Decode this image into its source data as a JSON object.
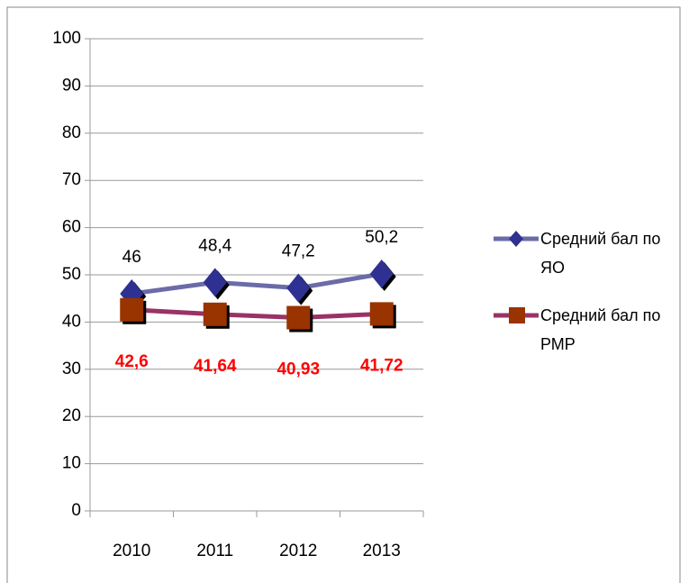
{
  "chart_data": {
    "type": "line",
    "categories": [
      "2010",
      "2011",
      "2012",
      "2013"
    ],
    "series": [
      {
        "name": "Средний бал по ЯО",
        "color": "#6b6ba8",
        "marker_color": "#2e3192",
        "marker": "diamond",
        "values": [
          46,
          48.4,
          47.2,
          50.2
        ],
        "value_labels": [
          "46",
          "48,4",
          "47,2",
          "50,2"
        ],
        "label_color": "#000000"
      },
      {
        "name": "Средний бал по РМР",
        "color": "#993366",
        "marker_color": "#993300",
        "marker": "square",
        "values": [
          42.6,
          41.64,
          40.93,
          41.72
        ],
        "value_labels": [
          "42,6",
          "41,64",
          "40,93",
          "41,72"
        ],
        "label_color": "#ff0000"
      }
    ],
    "ylim": [
      0,
      100
    ],
    "yticks": [
      0,
      10,
      20,
      30,
      40,
      50,
      60,
      70,
      80,
      90,
      100
    ],
    "grid": true,
    "legend": "right"
  }
}
